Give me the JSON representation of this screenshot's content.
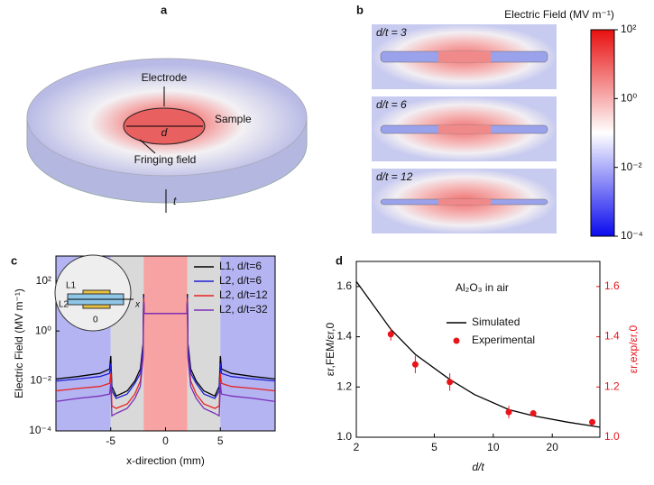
{
  "panel_labels": [
    "a",
    "b",
    "c",
    "d"
  ],
  "panel_a": {
    "electrode": "Electrode",
    "sample": "Sample",
    "diameter": "d",
    "fringing": "Fringing field",
    "thickness": "t"
  },
  "panel_b": {
    "colorbar_title": "Electric Field (MV m⁻¹)",
    "maps": [
      "d/t = 3",
      "d/t = 6",
      "d/t = 12"
    ],
    "colorbar_lim": [
      0.0001,
      100
    ],
    "colorbar_ticks": [
      {
        "value": 100,
        "label": "10²"
      },
      {
        "value": 1,
        "label": "10⁰"
      },
      {
        "value": 0.01,
        "label": "10⁻²"
      },
      {
        "value": 0.0001,
        "label": "10⁻⁴"
      }
    ]
  },
  "chart_data": [
    {
      "type": "line",
      "xlabel": "x-direction (mm)",
      "ylabel": "Electric Field (MV m⁻¹)",
      "xlim": [
        -10,
        10
      ],
      "xticks": [
        -5,
        0,
        5
      ],
      "ylim": [
        0.0001,
        1000
      ],
      "ylog": true,
      "yticks": [
        {
          "value": 0.0001,
          "label": "10⁻⁴"
        },
        {
          "value": 0.01,
          "label": "10⁻²"
        },
        {
          "value": 1,
          "label": "10⁰"
        },
        {
          "value": 100,
          "label": "10²"
        }
      ],
      "legend": "upper right",
      "regions": [
        {
          "from": -10,
          "to": -5,
          "color": "#b4b4f2"
        },
        {
          "from": -5,
          "to": -2,
          "color": "#d9d9d9"
        },
        {
          "from": -2,
          "to": 2,
          "color": "#f7a3a3"
        },
        {
          "from": 2,
          "to": 5,
          "color": "#d9d9d9"
        },
        {
          "from": 5,
          "to": 10,
          "color": "#b4b4f2"
        }
      ],
      "inset_labels": [
        "L1",
        "L2",
        "x",
        "0"
      ],
      "x": [
        -10,
        -8,
        -6,
        -5.1,
        -5,
        -4.9,
        -4.5,
        -3.5,
        -2.8,
        -2.3,
        -2.05,
        -2,
        -1.95,
        -1,
        0,
        1,
        1.95,
        2,
        2.05,
        2.3,
        2.8,
        3.5,
        4.5,
        4.9,
        5,
        5.1,
        6,
        8,
        10
      ],
      "series": [
        {
          "name": "L1, d/t=6",
          "color": "#000000",
          "values": [
            0.012,
            0.015,
            0.02,
            0.03,
            0.1,
            0.006,
            0.0025,
            0.004,
            0.01,
            0.03,
            0.3,
            30,
            5,
            5,
            5,
            5,
            5,
            30,
            0.3,
            0.03,
            0.01,
            0.004,
            0.0025,
            0.006,
            0.1,
            0.03,
            0.02,
            0.015,
            0.012
          ]
        },
        {
          "name": "L2, d/t=6",
          "color": "#1f1fd6",
          "values": [
            0.01,
            0.012,
            0.015,
            0.02,
            0.05,
            0.004,
            0.002,
            0.003,
            0.008,
            0.02,
            0.2,
            25,
            5,
            5,
            5,
            5,
            5,
            25,
            0.2,
            0.02,
            0.008,
            0.003,
            0.002,
            0.004,
            0.05,
            0.02,
            0.015,
            0.012,
            0.01
          ]
        },
        {
          "name": "L2, d/t=12",
          "color": "#e8231f",
          "values": [
            0.004,
            0.005,
            0.006,
            0.008,
            0.02,
            0.001,
            0.0008,
            0.0012,
            0.003,
            0.01,
            0.1,
            20,
            5,
            5,
            5,
            5,
            5,
            20,
            0.1,
            0.01,
            0.003,
            0.0012,
            0.0008,
            0.001,
            0.02,
            0.008,
            0.006,
            0.005,
            0.004
          ]
        },
        {
          "name": "L2, d/t=32",
          "color": "#7a2fb8",
          "values": [
            0.0015,
            0.002,
            0.0025,
            0.003,
            0.008,
            0.0004,
            0.0005,
            0.0008,
            0.002,
            0.006,
            0.08,
            15,
            5,
            5,
            5,
            5,
            5,
            15,
            0.08,
            0.006,
            0.002,
            0.0008,
            0.0005,
            0.0004,
            0.008,
            0.003,
            0.0025,
            0.002,
            0.0015
          ]
        }
      ]
    },
    {
      "type": "scatter",
      "xlabel": "d/t",
      "ylabel": "εr,FEM/εr,0",
      "y2label": "εr,exp/εr,0",
      "annotation": "Al₂O₃ in air",
      "xlim": [
        2,
        35
      ],
      "xlog": true,
      "xticks": [
        2,
        5,
        10,
        20
      ],
      "ylim": [
        1.0,
        1.7
      ],
      "yticks": [
        {
          "value": 1.0,
          "label": "1.0"
        },
        1.2,
        1.4,
        1.6
      ],
      "y2lim": [
        1.0,
        1.7
      ],
      "y2ticks": [
        {
          "value": 1.0,
          "label": "1.0"
        },
        1.2,
        1.4,
        1.6
      ],
      "legend": "center right",
      "series": [
        {
          "name": "Simulated",
          "color": "#000000",
          "kind": "line",
          "x": [
            2,
            3,
            4,
            6,
            8,
            12,
            16,
            24,
            32,
            35
          ],
          "values": [
            1.62,
            1.43,
            1.33,
            1.23,
            1.17,
            1.11,
            1.085,
            1.06,
            1.045,
            1.04
          ]
        },
        {
          "name": "Experimental",
          "color": "#e8141a",
          "kind": "points",
          "axis": "y2",
          "x": [
            3,
            4,
            6,
            12,
            16,
            32
          ],
          "values": [
            1.41,
            1.29,
            1.22,
            1.1,
            1.095,
            1.06
          ],
          "errors": [
            0.025,
            0.035,
            0.035,
            0.025,
            0.01,
            0.01
          ]
        }
      ]
    }
  ]
}
